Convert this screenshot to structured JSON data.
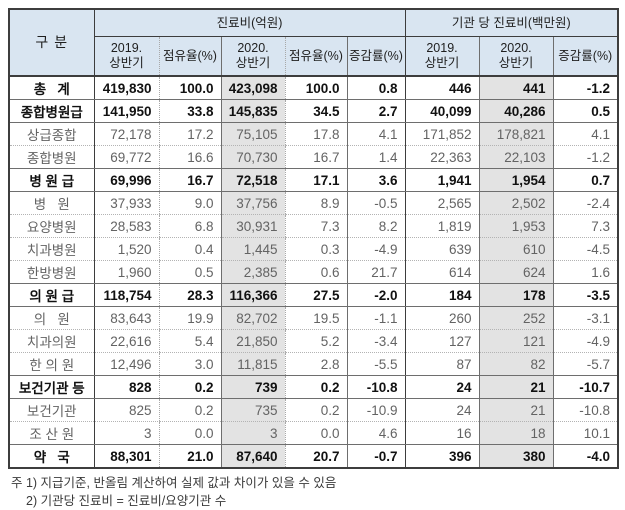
{
  "table": {
    "header": {
      "category": "구  분",
      "groups": [
        {
          "label": "진료비(억원)"
        },
        {
          "label": "기관 당 진료비(백만원)"
        }
      ],
      "columns": [
        "2019.\n상반기",
        "점유율(%)",
        "2020.\n상반기",
        "점유율(%)",
        "증감률(%)",
        "2019.\n상반기",
        "2020.\n상반기",
        "증감률(%)"
      ]
    },
    "rows": [
      {
        "label": "총   계",
        "type": "group",
        "border": "solid",
        "values": [
          "419,830",
          "100.0",
          "423,098",
          "100.0",
          "0.8",
          "446",
          "441",
          "-1.2"
        ]
      },
      {
        "label": "종합병원급",
        "type": "group",
        "border": "solid",
        "values": [
          "141,950",
          "33.8",
          "145,835",
          "34.5",
          "2.7",
          "40,099",
          "40,286",
          "0.5"
        ]
      },
      {
        "label": "상급종합",
        "type": "sub",
        "border": "dotted",
        "values": [
          "72,178",
          "17.2",
          "75,105",
          "17.8",
          "4.1",
          "171,852",
          "178,821",
          "4.1"
        ]
      },
      {
        "label": "종합병원",
        "type": "sub",
        "border": "solid",
        "values": [
          "69,772",
          "16.6",
          "70,730",
          "16.7",
          "1.4",
          "22,363",
          "22,103",
          "-1.2"
        ]
      },
      {
        "label": "병 원 급",
        "type": "group",
        "border": "solid",
        "values": [
          "69,996",
          "16.7",
          "72,518",
          "17.1",
          "3.6",
          "1,941",
          "1,954",
          "0.7"
        ]
      },
      {
        "label": "병   원",
        "type": "sub",
        "border": "dotted",
        "values": [
          "37,933",
          "9.0",
          "37,756",
          "8.9",
          "-0.5",
          "2,565",
          "2,502",
          "-2.4"
        ]
      },
      {
        "label": "요양병원",
        "type": "sub",
        "border": "dotted",
        "values": [
          "28,583",
          "6.8",
          "30,931",
          "7.3",
          "8.2",
          "1,819",
          "1,953",
          "7.3"
        ]
      },
      {
        "label": "치과병원",
        "type": "sub",
        "border": "dotted",
        "values": [
          "1,520",
          "0.4",
          "1,445",
          "0.3",
          "-4.9",
          "639",
          "610",
          "-4.5"
        ]
      },
      {
        "label": "한방병원",
        "type": "sub",
        "border": "solid",
        "values": [
          "1,960",
          "0.5",
          "2,385",
          "0.6",
          "21.7",
          "614",
          "624",
          "1.6"
        ]
      },
      {
        "label": "의 원 급",
        "type": "group",
        "border": "solid",
        "values": [
          "118,754",
          "28.3",
          "116,366",
          "27.5",
          "-2.0",
          "184",
          "178",
          "-3.5"
        ]
      },
      {
        "label": "의   원",
        "type": "sub",
        "border": "dotted",
        "values": [
          "83,643",
          "19.9",
          "82,702",
          "19.5",
          "-1.1",
          "260",
          "252",
          "-3.1"
        ]
      },
      {
        "label": "치과의원",
        "type": "sub",
        "border": "dotted",
        "values": [
          "22,616",
          "5.4",
          "21,850",
          "5.2",
          "-3.4",
          "127",
          "121",
          "-4.9"
        ]
      },
      {
        "label": "한 의 원",
        "type": "sub",
        "border": "solid",
        "values": [
          "12,496",
          "3.0",
          "11,815",
          "2.8",
          "-5.5",
          "87",
          "82",
          "-5.7"
        ]
      },
      {
        "label": "보건기관 등",
        "type": "group",
        "border": "solid",
        "values": [
          "828",
          "0.2",
          "739",
          "0.2",
          "-10.8",
          "24",
          "21",
          "-10.7"
        ]
      },
      {
        "label": "보건기관",
        "type": "sub",
        "border": "dotted",
        "values": [
          "825",
          "0.2",
          "735",
          "0.2",
          "-10.9",
          "24",
          "21",
          "-10.8"
        ]
      },
      {
        "label": "조 산 원",
        "type": "sub",
        "border": "solid",
        "values": [
          "3",
          "0.0",
          "3",
          "0.0",
          "4.6",
          "16",
          "18",
          "10.1"
        ]
      },
      {
        "label": "약   국",
        "type": "group",
        "border": "solid",
        "values": [
          "88,301",
          "21.0",
          "87,640",
          "20.7",
          "-0.7",
          "396",
          "380",
          "-4.0"
        ]
      }
    ]
  },
  "notes": [
    "주 1) 지급기준, 반올림 계산하여 실제 값과 차이가 있을 수 있음",
    "2) 기관당 진료비 = 진료비/요양기관 수"
  ],
  "colors": {
    "header_bg": "#d9e5f1",
    "highlight_column_bg": "#e3e3e3",
    "border_dark": "#3d3d3d",
    "sub_text": "#636363"
  }
}
